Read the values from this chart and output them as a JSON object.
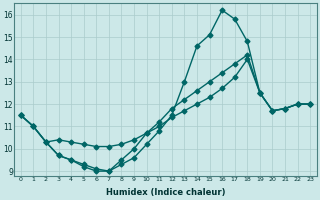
{
  "xlabel": "Humidex (Indice chaleur)",
  "bg_color": "#cce8e8",
  "grid_color": "#aacccc",
  "line_color": "#006666",
  "ylim": [
    8.8,
    16.5
  ],
  "xlim": [
    -0.5,
    23.5
  ],
  "yticks": [
    9,
    10,
    11,
    12,
    13,
    14,
    15,
    16
  ],
  "xticks": [
    0,
    1,
    2,
    3,
    4,
    5,
    6,
    7,
    8,
    9,
    10,
    11,
    12,
    13,
    14,
    15,
    16,
    17,
    18,
    19,
    20,
    21,
    22,
    23
  ],
  "line1_x": [
    0,
    1,
    2,
    3,
    4,
    5,
    6,
    7,
    8,
    9,
    10,
    11,
    12,
    13,
    14,
    15,
    16,
    17,
    18,
    19,
    20,
    21,
    22,
    23
  ],
  "line1_y": [
    11.5,
    11.0,
    10.3,
    9.7,
    9.5,
    9.3,
    9.1,
    9.0,
    9.3,
    9.6,
    10.2,
    10.8,
    11.5,
    13.0,
    14.6,
    15.1,
    16.2,
    15.8,
    14.8,
    12.5,
    11.7,
    11.8,
    12.0,
    12.0
  ],
  "line2_x": [
    0,
    1,
    2,
    3,
    4,
    5,
    6,
    7,
    8,
    9,
    10,
    11,
    12,
    13,
    14,
    15,
    16,
    17,
    18,
    19,
    20,
    21,
    22,
    23
  ],
  "line2_y": [
    11.5,
    11.0,
    10.3,
    10.4,
    10.3,
    10.2,
    10.1,
    10.1,
    10.2,
    10.4,
    10.7,
    11.0,
    11.4,
    11.7,
    12.0,
    12.3,
    12.7,
    13.2,
    14.0,
    12.5,
    11.7,
    11.8,
    12.0,
    12.0
  ],
  "line3_x": [
    0,
    1,
    2,
    3,
    4,
    5,
    6,
    7,
    8,
    9,
    10,
    11,
    12,
    13,
    14,
    15,
    16,
    17,
    18,
    19,
    20,
    21,
    22,
    23
  ],
  "line3_y": [
    11.5,
    11.0,
    10.3,
    9.7,
    9.5,
    9.2,
    9.0,
    9.0,
    9.5,
    10.0,
    10.7,
    11.2,
    11.8,
    12.2,
    12.6,
    13.0,
    13.4,
    13.8,
    14.2,
    12.5,
    11.7,
    11.8,
    12.0,
    12.0
  ]
}
